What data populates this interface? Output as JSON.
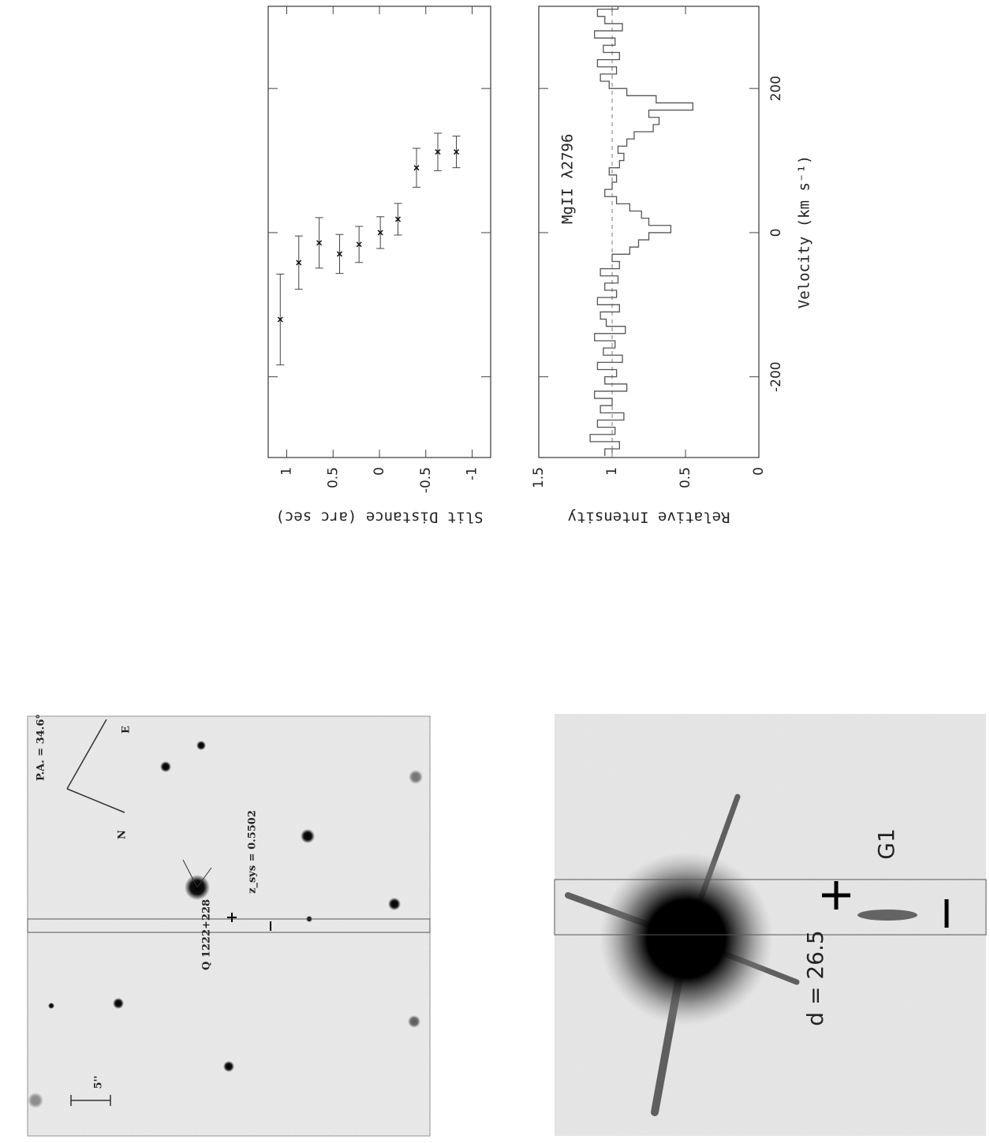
{
  "chart_data": [
    {
      "type": "errorbar",
      "ylabel": "Slit Distance (arc sec)",
      "x": [
        -120.5,
        -41.6,
        -14.2,
        -29.6,
        -16.4,
        0,
        18.6,
        90,
        112,
        112
      ],
      "xerr": [
        63,
        37,
        35,
        27,
        25,
        22,
        22,
        27,
        26,
        22
      ],
      "values": [
        1.07,
        0.87,
        0.65,
        0.43,
        0.22,
        -0.01,
        -0.2,
        -0.4,
        -0.63,
        -0.83
      ],
      "xlim": [
        -312,
        314
      ],
      "ylim": [
        -1.2,
        1.2
      ],
      "yticks": [
        1,
        0.5,
        0,
        -0.5,
        -1
      ],
      "color": "#444"
    },
    {
      "type": "step",
      "ylabel": "Relative Intensity",
      "xlabel": "Velocity (km s⁻¹)",
      "annotation": "MgII λ2796",
      "x": [
        -310,
        -300,
        -290,
        -280,
        -270,
        -260,
        -250,
        -240,
        -230,
        -220,
        -210,
        -200,
        -190,
        -180,
        -170,
        -160,
        -150,
        -140,
        -130,
        -120,
        -110,
        -100,
        -90,
        -80,
        -70,
        -60,
        -50,
        -40,
        -30,
        -20,
        -10,
        0,
        10,
        20,
        30,
        40,
        50,
        60,
        70,
        80,
        90,
        100,
        110,
        120,
        130,
        140,
        150,
        160,
        170,
        180,
        190,
        200,
        210,
        220,
        230,
        240,
        250,
        260,
        270,
        280,
        290,
        300,
        310
      ],
      "values": [
        1.05,
        0.95,
        1.15,
        0.98,
        1.1,
        0.92,
        1.08,
        1.0,
        1.12,
        0.9,
        1.05,
        0.97,
        1.1,
        0.93,
        1.06,
        0.98,
        1.12,
        0.91,
        1.04,
        1.08,
        0.95,
        1.1,
        0.97,
        1.05,
        0.96,
        1.08,
        0.95,
        1.0,
        0.88,
        0.82,
        0.75,
        0.6,
        0.75,
        0.8,
        0.88,
        0.97,
        1.05,
        1.0,
        0.97,
        1.02,
        0.95,
        0.92,
        0.96,
        0.9,
        0.85,
        0.72,
        0.68,
        0.75,
        0.45,
        0.7,
        0.9,
        1.02,
        1.08,
        0.97,
        1.1,
        0.95,
        1.06,
        0.98,
        1.12,
        0.93,
        1.05,
        1.1,
        0.96
      ],
      "xlim": [
        -312,
        314
      ],
      "xticks": [
        -200,
        0,
        200
      ],
      "ylim": [
        0,
        1.5
      ],
      "yticks": [
        1.5,
        1,
        0.5,
        0
      ],
      "color": "#555"
    }
  ],
  "image_panels": {
    "top": {
      "position_angle": "P.A. = 34.6°",
      "east": "E",
      "north": "N",
      "scale": "5''",
      "quasar": "Q 1222+228",
      "redshift": "z_sys = 0.5502"
    },
    "bottom": {
      "distance": "d = 26.5",
      "galaxy": "G1"
    }
  }
}
